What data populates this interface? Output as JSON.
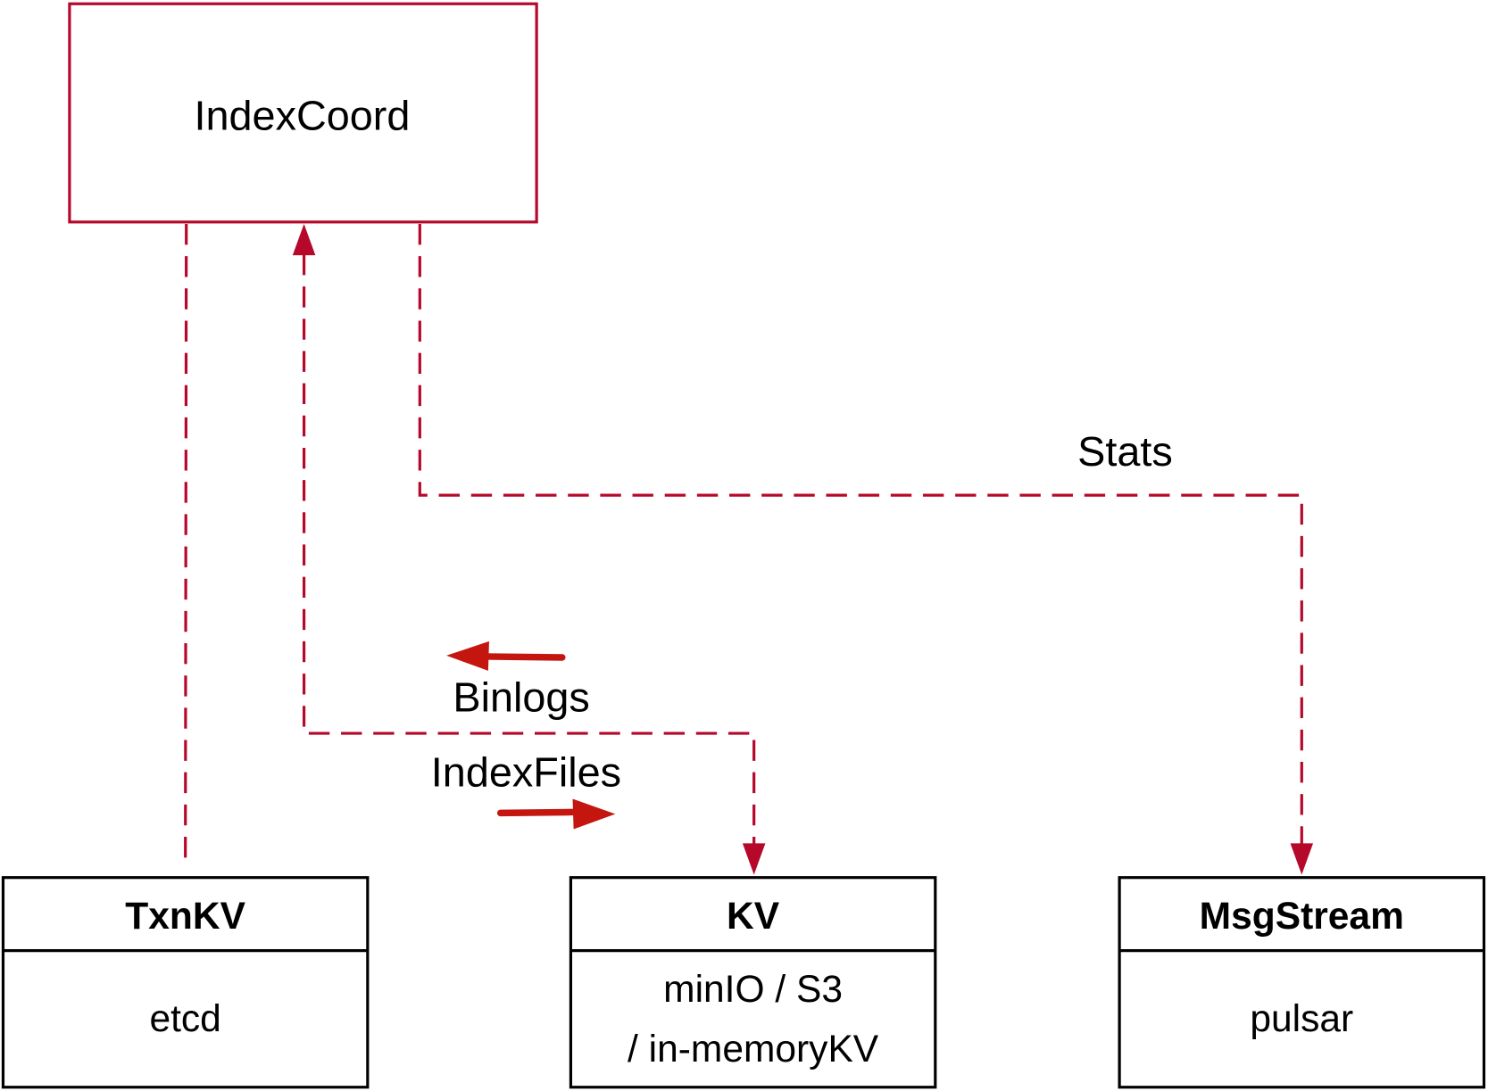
{
  "colors": {
    "connector": "#b5082a",
    "flow_arrow": "#c4160f",
    "box_border": "#000000"
  },
  "coordinator": {
    "label": "IndexCoord"
  },
  "edges": {
    "stats_label": "Stats",
    "binlogs_label": "Binlogs",
    "indexfiles_label": "IndexFiles"
  },
  "stores": [
    {
      "title": "TxnKV",
      "lines": [
        "etcd"
      ]
    },
    {
      "title": "KV",
      "lines": [
        "minIO / S3",
        "/ in-memoryKV"
      ]
    },
    {
      "title": "MsgStream",
      "lines": [
        "pulsar"
      ]
    }
  ]
}
